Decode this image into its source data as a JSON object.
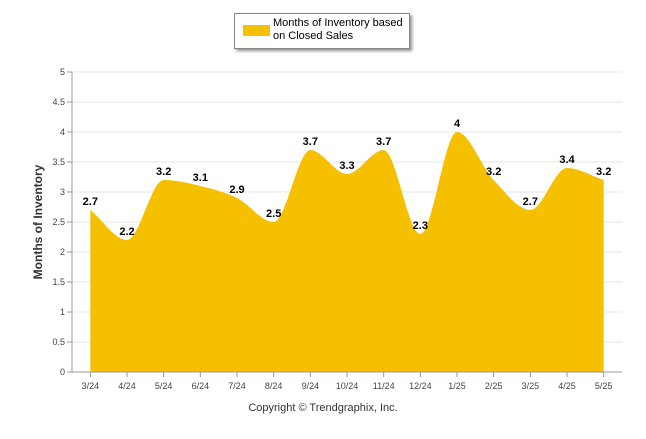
{
  "chart_data": {
    "type": "area",
    "title": "",
    "xlabel": "",
    "ylabel": "Months of Inventory",
    "categories": [
      "3/24",
      "4/24",
      "5/24",
      "6/24",
      "7/24",
      "8/24",
      "9/24",
      "10/24",
      "11/24",
      "12/24",
      "1/25",
      "2/25",
      "3/25",
      "4/25",
      "5/25"
    ],
    "series": [
      {
        "name": "Months of Inventory based on Closed Sales",
        "values": [
          2.7,
          2.2,
          3.2,
          3.1,
          2.9,
          2.5,
          3.7,
          3.3,
          3.7,
          2.3,
          4,
          3.2,
          2.7,
          3.4,
          3.2
        ],
        "color": "#F5C000"
      }
    ],
    "ylim": [
      0,
      5
    ],
    "yticks": [
      "0",
      "0.5",
      "1",
      "1.5",
      "2",
      "2.5",
      "3",
      "3.5",
      "4",
      "4.5",
      "5"
    ],
    "grid": true,
    "legend_position": "top-center",
    "data_labels": true
  },
  "footer": {
    "copyright": "Copyright © Trendgraphix, Inc."
  }
}
